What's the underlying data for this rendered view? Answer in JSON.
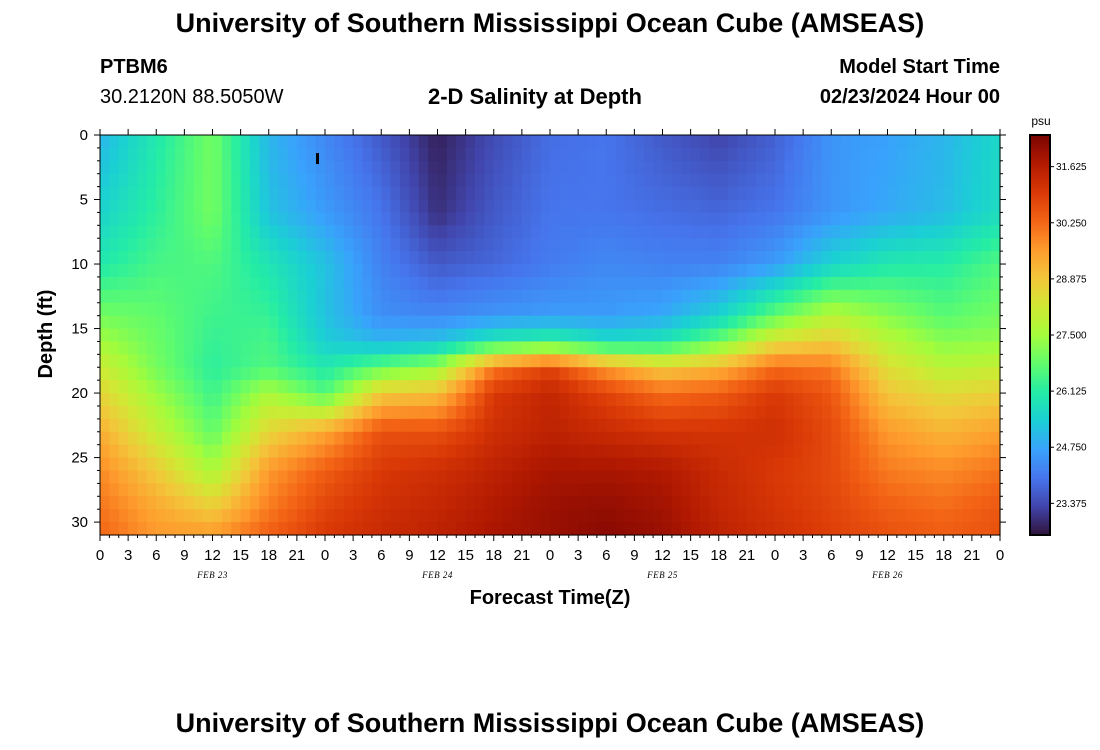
{
  "header": {
    "title": "University of Southern Mississippi Ocean Cube (AMSEAS)",
    "station_id": "PTBM6",
    "coordinates": "30.2120N  88.5050W",
    "plot_title": "2-D Salinity at Depth",
    "model_start_label": "Model Start Time",
    "model_start_value": "02/23/2024 Hour 00"
  },
  "footer": {
    "title": "University of Southern Mississippi Ocean Cube (AMSEAS)"
  },
  "chart_data": {
    "type": "heatmap",
    "title": "2-D Salinity at Depth",
    "xlabel": "Forecast Time(Z)",
    "ylabel": "Depth (ft)",
    "x_hours_range": [
      0,
      96
    ],
    "ylim": [
      0,
      31
    ],
    "y_inverted": true,
    "x_tick_labels": [
      "0",
      "3",
      "6",
      "9",
      "12",
      "15",
      "18",
      "21",
      "0",
      "3",
      "6",
      "9",
      "12",
      "15",
      "18",
      "21",
      "0",
      "3",
      "6",
      "9",
      "12",
      "15",
      "18",
      "21",
      "0",
      "3",
      "6",
      "9",
      "12",
      "15",
      "18",
      "21",
      "0"
    ],
    "y_tick_labels": [
      "0",
      "5",
      "10",
      "15",
      "20",
      "25",
      "30"
    ],
    "date_labels": [
      {
        "text": "FEB 23",
        "hour": 12
      },
      {
        "text": "FEB 24",
        "hour": 36
      },
      {
        "text": "FEB 25",
        "hour": 60
      },
      {
        "text": "FEB 26",
        "hour": 84
      }
    ],
    "colorbar": {
      "unit": "psu",
      "min": 22.6,
      "max": 32.4,
      "labels": [
        "31.625",
        "30.250",
        "28.875",
        "27.500",
        "26.125",
        "24.750",
        "23.375"
      ]
    },
    "salinity_psu_by_depth": {
      "hours": [
        0,
        6,
        12,
        18,
        24,
        30,
        36,
        42,
        48,
        54,
        60,
        66,
        72,
        78,
        84,
        90,
        96
      ],
      "rows": [
        {
          "depth_ft": 0,
          "values": [
            25.0,
            26.0,
            27.0,
            25.0,
            24.3,
            23.6,
            22.8,
            23.4,
            23.9,
            24.0,
            23.6,
            23.3,
            23.7,
            24.5,
            24.7,
            25.0,
            25.6
          ]
        },
        {
          "depth_ft": 6,
          "values": [
            25.5,
            26.2,
            27.0,
            25.2,
            24.6,
            24.0,
            23.0,
            23.6,
            24.0,
            24.0,
            23.9,
            23.8,
            24.0,
            24.5,
            24.8,
            25.1,
            25.7
          ]
        },
        {
          "depth_ft": 10,
          "values": [
            26.0,
            26.5,
            26.6,
            25.9,
            25.2,
            24.2,
            23.6,
            23.8,
            24.1,
            24.3,
            24.2,
            24.2,
            24.6,
            25.5,
            26.0,
            26.1,
            26.6
          ]
        },
        {
          "depth_ft": 14,
          "values": [
            27.0,
            26.8,
            26.4,
            26.3,
            25.2,
            24.4,
            24.3,
            24.5,
            24.6,
            24.6,
            24.8,
            25.5,
            26.8,
            27.8,
            27.2,
            26.7,
            27.0
          ]
        },
        {
          "depth_ft": 16,
          "values": [
            27.5,
            26.9,
            26.3,
            26.5,
            25.4,
            25.0,
            25.2,
            26.0,
            26.3,
            25.7,
            25.9,
            26.9,
            28.4,
            28.8,
            27.8,
            27.2,
            27.3
          ]
        },
        {
          "depth_ft": 18,
          "values": [
            28.1,
            27.0,
            26.2,
            26.6,
            26.0,
            26.8,
            27.4,
            30.0,
            30.8,
            29.6,
            28.8,
            29.2,
            30.2,
            30.0,
            28.4,
            27.8,
            28.0
          ]
        },
        {
          "depth_ft": 20,
          "values": [
            28.6,
            27.4,
            26.4,
            27.6,
            26.6,
            28.8,
            29.0,
            31.0,
            31.4,
            30.8,
            30.2,
            30.4,
            31.0,
            30.5,
            28.9,
            28.5,
            28.7
          ]
        },
        {
          "depth_ft": 23,
          "values": [
            29.3,
            28.0,
            26.8,
            28.6,
            29.4,
            30.6,
            30.6,
            31.2,
            31.5,
            31.3,
            31.1,
            31.1,
            31.2,
            30.7,
            29.6,
            29.2,
            29.5
          ]
        },
        {
          "depth_ft": 26,
          "values": [
            29.8,
            28.8,
            27.6,
            29.6,
            30.4,
            31.0,
            31.2,
            31.5,
            31.8,
            31.8,
            31.7,
            31.3,
            31.0,
            30.7,
            30.0,
            29.8,
            30.1
          ]
        },
        {
          "depth_ft": 29,
          "values": [
            30.1,
            29.4,
            28.8,
            30.0,
            30.8,
            31.2,
            31.4,
            31.7,
            32.0,
            32.1,
            31.9,
            31.4,
            31.1,
            30.8,
            30.4,
            30.2,
            30.5
          ]
        },
        {
          "depth_ft": 31,
          "values": [
            30.3,
            29.6,
            29.6,
            30.4,
            31.0,
            31.3,
            31.5,
            31.8,
            32.0,
            32.2,
            32.0,
            31.5,
            31.2,
            30.9,
            30.6,
            30.4,
            30.6
          ]
        }
      ]
    }
  },
  "colors": {
    "colormap": [
      "#30123b",
      "#4145ab",
      "#4675ed",
      "#39a2fc",
      "#1bcfd4",
      "#24eca6",
      "#61fc6c",
      "#a4fc3b",
      "#d1e834",
      "#f3c63a",
      "#fe9b2d",
      "#f36315",
      "#d93806",
      "#b11901",
      "#7a0403"
    ]
  }
}
